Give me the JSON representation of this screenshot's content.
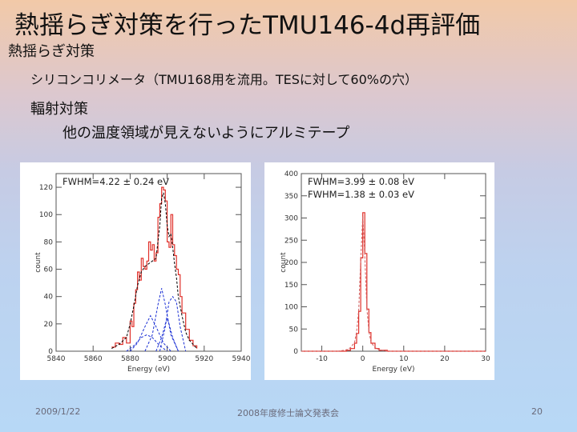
{
  "slide": {
    "title": "熱揺らぎ対策を行ったTMU146-4d再評価",
    "lines": [
      "熱揺らぎ対策",
      "シリコンコリメータ（TMU168用を流用。TESに対して60%の穴）",
      "輻射対策",
      "他の温度領域が見えないようにアルミテープ"
    ]
  },
  "colors": {
    "data": "#e0302a",
    "fit": "#1a2fd4",
    "total_fit": "#000000"
  },
  "footer": {
    "date": "2009/1/22",
    "center": "2008年度修士論文発表会",
    "page": "20"
  },
  "chart_data": [
    {
      "type": "line",
      "annotation": "FWHM=4.22 ± 0.24 eV",
      "xlabel": "Energy (eV)",
      "ylabel": "count",
      "xlim": [
        5840,
        5940
      ],
      "ylim": [
        0,
        130
      ],
      "xticks": [
        "5840",
        "5860",
        "5880",
        "5900",
        "5920",
        "5940"
      ],
      "yticks": [
        "0",
        "20",
        "40",
        "60",
        "80",
        "100",
        "120"
      ],
      "series": [
        {
          "role": "data",
          "x": [
            5870,
            5872,
            5874,
            5876,
            5878,
            5880,
            5881,
            5882,
            5883,
            5884,
            5885,
            5886,
            5887,
            5888,
            5889,
            5890,
            5891,
            5892,
            5893,
            5894,
            5895,
            5896,
            5897,
            5898,
            5899,
            5900,
            5901,
            5902,
            5903,
            5904,
            5905,
            5906,
            5907,
            5908,
            5910,
            5912,
            5914,
            5916
          ],
          "values": [
            3,
            6,
            5,
            10,
            6,
            22,
            18,
            35,
            45,
            58,
            52,
            68,
            62,
            60,
            66,
            80,
            74,
            78,
            66,
            72,
            98,
            108,
            120,
            118,
            110,
            80,
            76,
            100,
            78,
            70,
            60,
            56,
            40,
            28,
            16,
            8,
            4,
            2
          ]
        },
        {
          "role": "total fit",
          "x": [
            5870,
            5874,
            5878,
            5880,
            5882,
            5884,
            5886,
            5888,
            5890,
            5892,
            5894,
            5896,
            5897,
            5898,
            5899,
            5900,
            5901,
            5902,
            5903,
            5904,
            5905,
            5906,
            5908,
            5910,
            5912,
            5916
          ],
          "values": [
            2,
            5,
            10,
            20,
            33,
            48,
            58,
            62,
            64,
            66,
            68,
            92,
            112,
            116,
            108,
            92,
            84,
            86,
            76,
            64,
            54,
            40,
            26,
            14,
            8,
            2
          ]
        },
        {
          "role": "component fit",
          "x": [
            5878,
            5882,
            5886,
            5889,
            5892,
            5896,
            5900
          ],
          "values": [
            0,
            4,
            10,
            12,
            10,
            4,
            0
          ]
        },
        {
          "role": "component fit",
          "x": [
            5880,
            5884,
            5888,
            5891,
            5894,
            5898,
            5902
          ],
          "values": [
            0,
            6,
            18,
            26,
            18,
            6,
            0
          ]
        },
        {
          "role": "component fit",
          "x": [
            5888,
            5892,
            5895,
            5897,
            5899,
            5902,
            5906
          ],
          "values": [
            0,
            12,
            34,
            46,
            34,
            12,
            0
          ]
        },
        {
          "role": "component fit",
          "x": [
            5894,
            5897,
            5899,
            5900,
            5901,
            5903,
            5906
          ],
          "values": [
            0,
            10,
            20,
            24,
            20,
            10,
            0
          ]
        },
        {
          "role": "component fit",
          "x": [
            5896,
            5899,
            5901,
            5903,
            5905,
            5907,
            5910
          ],
          "values": [
            0,
            18,
            36,
            40,
            36,
            18,
            0
          ]
        }
      ]
    },
    {
      "type": "line",
      "annotations": [
        "FWHM=3.99 ± 0.08 eV",
        "FWHM=1.38 ± 0.03 eV"
      ],
      "xlabel": "Energy (eV)",
      "ylabel": "count",
      "xlim": [
        -15,
        30
      ],
      "ylim": [
        0,
        400
      ],
      "xticks": [
        "-10",
        "0",
        "10",
        "20",
        "30"
      ],
      "yticks": [
        "0",
        "50",
        "100",
        "150",
        "200",
        "250",
        "300",
        "350",
        "400"
      ],
      "series": [
        {
          "role": "data",
          "x": [
            -15,
            -6,
            -4,
            -3,
            -2,
            -1.5,
            -1,
            -0.5,
            0,
            0.5,
            1,
            1.5,
            2,
            3,
            4,
            6,
            30
          ],
          "values": [
            0,
            0,
            2,
            6,
            18,
            40,
            90,
            210,
            312,
            220,
            95,
            42,
            18,
            6,
            2,
            0,
            0
          ]
        },
        {
          "role": "fit",
          "x": [
            -15,
            -6,
            -4,
            -3,
            -2,
            -1.5,
            -1,
            -0.5,
            0,
            0.5,
            1,
            1.5,
            2,
            3,
            4,
            6,
            30
          ],
          "values": [
            0,
            0,
            3,
            8,
            20,
            44,
            92,
            205,
            305,
            215,
            96,
            46,
            20,
            8,
            3,
            0,
            0
          ]
        }
      ]
    }
  ]
}
